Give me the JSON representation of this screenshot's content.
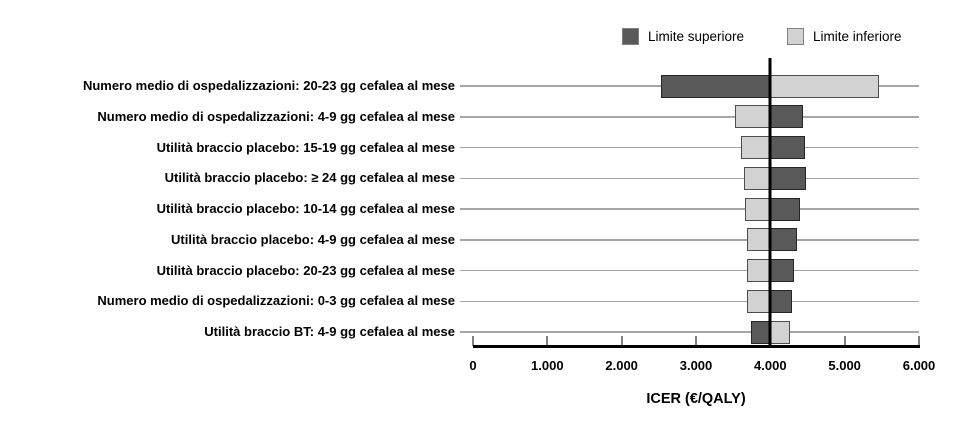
{
  "chart_data": {
    "type": "bar",
    "subtype": "tornado",
    "title": "",
    "xlabel": "ICER (€/QALY)",
    "xlim": [
      0,
      6000
    ],
    "base_value": 4000,
    "grid": false,
    "x_ticks": [
      {
        "value": 0,
        "label": "0"
      },
      {
        "value": 1000,
        "label": "1.000"
      },
      {
        "value": 2000,
        "label": "2.000"
      },
      {
        "value": 3000,
        "label": "3.000"
      },
      {
        "value": 4000,
        "label": "4.000"
      },
      {
        "value": 5000,
        "label": "5.000"
      },
      {
        "value": 6000,
        "label": "6.000"
      }
    ],
    "legend": [
      {
        "label": "Limite superiore",
        "color": "#595959"
      },
      {
        "label": "Limite inferiore",
        "color": "#d2d2d2"
      }
    ],
    "legend_position": "top-right",
    "rows": [
      {
        "label": "Numero medio di ospedalizzazioni: 20-23 gg cefalea al mese",
        "limite_superiore": 2530,
        "limite_inferiore": 5460
      },
      {
        "label": "Numero medio di ospedalizzazioni: 4-9 gg cefalea al mese",
        "limite_superiore": 4440,
        "limite_inferiore": 3530
      },
      {
        "label": "Utilità braccio placebo: 15-19 gg cefalea al mese",
        "limite_superiore": 4460,
        "limite_inferiore": 3600
      },
      {
        "label": "Utilità braccio placebo: ≥ 24 gg cefalea al mese",
        "limite_superiore": 4480,
        "limite_inferiore": 3650
      },
      {
        "label": "Utilità braccio placebo: 10-14 gg cefalea al mese",
        "limite_superiore": 4400,
        "limite_inferiore": 3660
      },
      {
        "label": "Utilità braccio placebo: 4-9 gg cefalea al mese",
        "limite_superiore": 4360,
        "limite_inferiore": 3680
      },
      {
        "label": "Utilità braccio placebo: 20-23 gg cefalea al mese",
        "limite_superiore": 4320,
        "limite_inferiore": 3680
      },
      {
        "label": "Numero medio di ospedalizzazioni: 0-3 gg cefalea al mese",
        "limite_superiore": 4290,
        "limite_inferiore": 3690
      },
      {
        "label": "Utilità braccio BT: 4-9 gg cefalea al mese",
        "limite_superiore": 3740,
        "limite_inferiore": 4270
      }
    ],
    "colors": {
      "superiore_fill": "#595959",
      "superiore_border": "#262626",
      "inferiore_fill": "#d2d2d2",
      "inferiore_border": "#4d4d4d",
      "row_line": "#a6a6a6",
      "baseline": "#000000",
      "axis": "#000000",
      "tick": "#808080"
    }
  }
}
